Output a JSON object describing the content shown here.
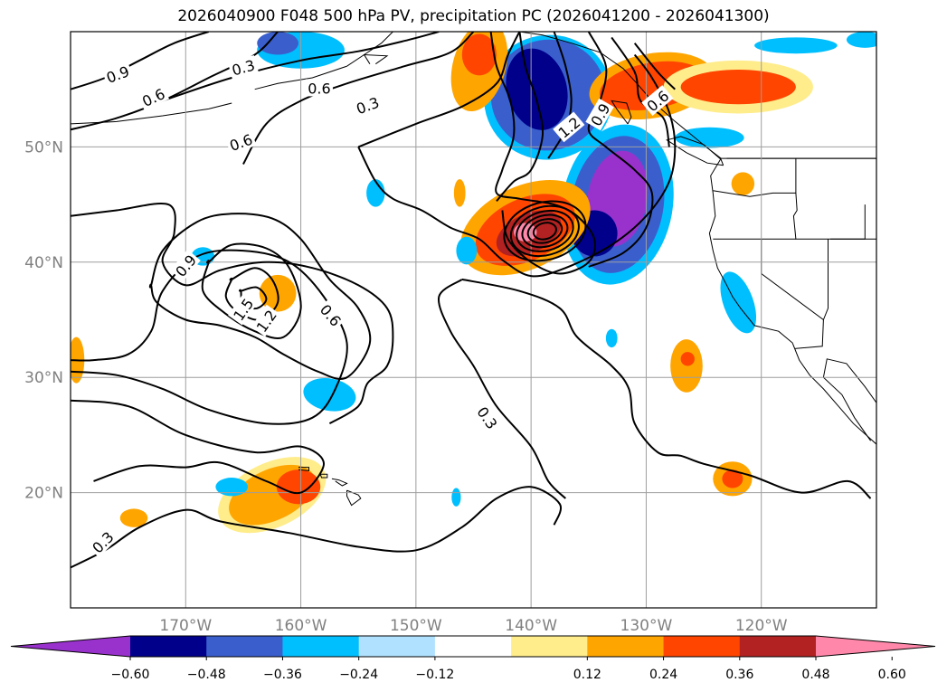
{
  "chart_data": {
    "type": "heatmap",
    "title": "2026040900 F048 500 hPa PV, precipitation PC (2026041200 - 2026041300)",
    "x_ticks": [
      "170°W",
      "160°W",
      "150°W",
      "140°W",
      "130°W",
      "120°W"
    ],
    "x_tick_values": [
      -170,
      -160,
      -150,
      -140,
      -130,
      -120
    ],
    "y_ticks": [
      "50°N",
      "40°N",
      "30°N",
      "20°N"
    ],
    "y_tick_values": [
      50,
      40,
      30,
      20
    ],
    "xlim": [
      -180,
      -110
    ],
    "ylim": [
      10,
      60
    ],
    "grid": true,
    "colorbar": {
      "labels": [
        "−0.60",
        "−0.48",
        "−0.36",
        "−0.24",
        "−0.12",
        "0.12",
        "0.24",
        "0.36",
        "0.48",
        "0.60"
      ],
      "levels": [
        -0.6,
        -0.48,
        -0.36,
        -0.24,
        -0.12,
        0.12,
        0.24,
        0.36,
        0.48,
        0.6
      ],
      "colors": [
        "#9932cc",
        "#00008b",
        "#3a5fcd",
        "#00bfff",
        "#b0e2ff",
        "#ffffff",
        "#ffec8b",
        "#ffa500",
        "#ff4500",
        "#b22222",
        "#ff88aa"
      ],
      "extend": "both"
    },
    "pv_contour_labels": [
      "0.3",
      "0.6",
      "0.9",
      "1.2",
      "1.5"
    ]
  }
}
